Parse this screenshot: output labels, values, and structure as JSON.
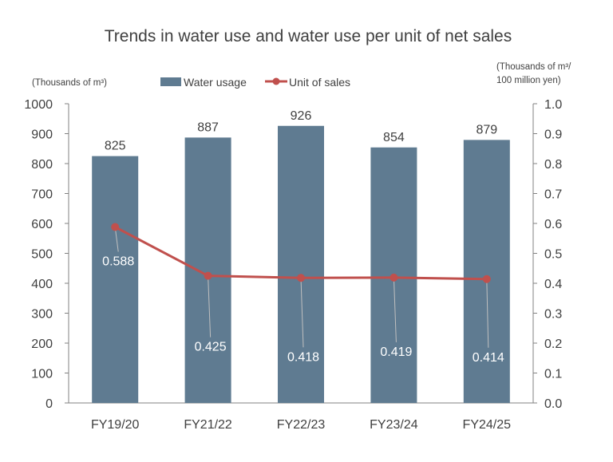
{
  "chart_data": {
    "type": "bar+line",
    "title": "Trends in water use and water use per unit of net sales",
    "categories": [
      "FY19/20",
      "FY21/22",
      "FY22/23",
      "FY23/24",
      "FY24/25"
    ],
    "series": [
      {
        "name": "Water usage",
        "type": "bar",
        "axis": "left",
        "values": [
          825,
          887,
          926,
          854,
          879
        ],
        "labels": [
          "825",
          "887",
          "926",
          "854",
          "879"
        ],
        "color": "#5F7B91"
      },
      {
        "name": "Unit of sales",
        "type": "line",
        "axis": "right",
        "values": [
          0.588,
          0.425,
          0.418,
          0.419,
          0.414
        ],
        "labels": [
          "0.588",
          "0.425",
          "0.418",
          "0.419",
          "0.414"
        ],
        "color": "#C0504D"
      }
    ],
    "left_axis": {
      "label": "(Thousands of m³)",
      "ylim": [
        0,
        1000
      ],
      "ticks": [
        "0",
        "100",
        "200",
        "300",
        "400",
        "500",
        "600",
        "700",
        "800",
        "900",
        "1000"
      ]
    },
    "right_axis": {
      "label_lines": [
        "(Thousands of m³/",
        "100 million yen)"
      ],
      "ylim": [
        0,
        1.0
      ],
      "ticks": [
        "0.0",
        "0.1",
        "0.2",
        "0.3",
        "0.4",
        "0.5",
        "0.6",
        "0.7",
        "0.8",
        "0.9",
        "1.0"
      ]
    },
    "legend": {
      "placement": "top",
      "items": [
        "Water usage",
        "Unit of sales"
      ]
    },
    "grid": false
  }
}
